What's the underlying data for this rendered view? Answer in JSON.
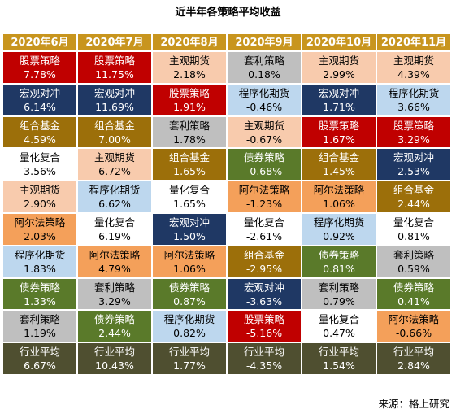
{
  "title": "近半年各策略平均收益",
  "source": "来源：格上研究",
  "header_color": "#c8951e",
  "strategy_colors": {
    "股票策略": "#c00000",
    "宏观对冲": "#1f3864",
    "组合基金": "#9c6f0a",
    "量化复合": "#ffffff",
    "主观期货": "#f8cbad",
    "阿尔法策略": "#f4a05a",
    "程序化期货": "#bdd7ee",
    "债券策略": "#5a7a2a",
    "套利策略": "#bfbfbf",
    "行业平均": "#4f4f30"
  },
  "table": {
    "columns": [
      {
        "header": "2020年6月",
        "cells": [
          {
            "name": "股票策略",
            "value": "7.78%"
          },
          {
            "name": "宏观对冲",
            "value": "6.14%"
          },
          {
            "name": "组合基金",
            "value": "4.59%"
          },
          {
            "name": "量化复合",
            "value": "3.56%"
          },
          {
            "name": "主观期货",
            "value": "2.90%"
          },
          {
            "name": "阿尔法策略",
            "value": "2.03%"
          },
          {
            "name": "程序化期货",
            "value": "1.83%"
          },
          {
            "name": "债券策略",
            "value": "1.33%"
          },
          {
            "name": "套利策略",
            "value": "1.19%"
          },
          {
            "name": "行业平均",
            "value": "6.67%"
          }
        ]
      },
      {
        "header": "2020年7月",
        "cells": [
          {
            "name": "股票策略",
            "value": "11.75%"
          },
          {
            "name": "宏观对冲",
            "value": "11.69%"
          },
          {
            "name": "组合基金",
            "value": "7.00%"
          },
          {
            "name": "主观期货",
            "value": "6.72%"
          },
          {
            "name": "程序化期货",
            "value": "6.62%"
          },
          {
            "name": "量化复合",
            "value": "6.19%"
          },
          {
            "name": "阿尔法策略",
            "value": "4.79%"
          },
          {
            "name": "套利策略",
            "value": "3.29%"
          },
          {
            "name": "债券策略",
            "value": "2.44%"
          },
          {
            "name": "行业平均",
            "value": "10.43%"
          }
        ]
      },
      {
        "header": "2020年8月",
        "cells": [
          {
            "name": "主观期货",
            "value": "2.18%"
          },
          {
            "name": "股票策略",
            "value": "1.91%"
          },
          {
            "name": "套利策略",
            "value": "1.78%"
          },
          {
            "name": "组合基金",
            "value": "1.65%"
          },
          {
            "name": "量化复合",
            "value": "1.65%"
          },
          {
            "name": "宏观对冲",
            "value": "1.50%"
          },
          {
            "name": "阿尔法策略",
            "value": "1.06%"
          },
          {
            "name": "债券策略",
            "value": "0.87%"
          },
          {
            "name": "程序化期货",
            "value": "0.82%"
          },
          {
            "name": "行业平均",
            "value": "1.77%"
          }
        ]
      },
      {
        "header": "2020年9月",
        "cells": [
          {
            "name": "套利策略",
            "value": "0.18%"
          },
          {
            "name": "程序化期货",
            "value": "-0.46%"
          },
          {
            "name": "主观期货",
            "value": "-0.67%"
          },
          {
            "name": "债券策略",
            "value": "-0.68%"
          },
          {
            "name": "阿尔法策略",
            "value": "-1.23%"
          },
          {
            "name": "量化复合",
            "value": "-2.61%"
          },
          {
            "name": "组合基金",
            "value": "-2.95%"
          },
          {
            "name": "宏观对冲",
            "value": "-3.63%"
          },
          {
            "name": "股票策略",
            "value": "-5.16%"
          },
          {
            "name": "行业平均",
            "value": "-4.35%"
          }
        ]
      },
      {
        "header": "2020年10月",
        "cells": [
          {
            "name": "主观期货",
            "value": "2.99%"
          },
          {
            "name": "宏观对冲",
            "value": "1.71%"
          },
          {
            "name": "股票策略",
            "value": "1.67%"
          },
          {
            "name": "组合基金",
            "value": "1.45%"
          },
          {
            "name": "阿尔法策略",
            "value": "1.06%"
          },
          {
            "name": "程序化期货",
            "value": "0.92%"
          },
          {
            "name": "债券策略",
            "value": "0.81%"
          },
          {
            "name": "套利策略",
            "value": "0.79%"
          },
          {
            "name": "量化复合",
            "value": "0.47%"
          },
          {
            "name": "行业平均",
            "value": "1.54%"
          }
        ]
      },
      {
        "header": "2020年11月",
        "cells": [
          {
            "name": "主观期货",
            "value": "4.39%"
          },
          {
            "name": "程序化期货",
            "value": "3.66%"
          },
          {
            "name": "股票策略",
            "value": "3.29%"
          },
          {
            "name": "宏观对冲",
            "value": "2.53%"
          },
          {
            "name": "组合基金",
            "value": "2.44%"
          },
          {
            "name": "量化复合",
            "value": "0.81%"
          },
          {
            "name": "套利策略",
            "value": "0.59%"
          },
          {
            "name": "债券策略",
            "value": "0.41%"
          },
          {
            "name": "阿尔法策略",
            "value": "-0.66%"
          },
          {
            "name": "行业平均",
            "value": "2.84%"
          }
        ]
      }
    ]
  }
}
